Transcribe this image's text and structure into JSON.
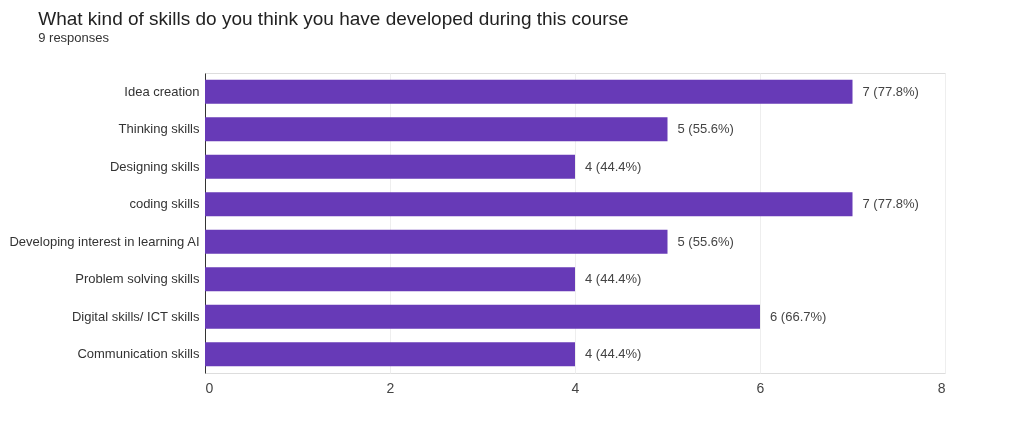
{
  "chart_data": {
    "type": "bar",
    "orientation": "horizontal",
    "title": "What kind of skills do you think you have developed during this course",
    "subtitle": "9 responses",
    "categories": [
      "Idea creation",
      "Thinking skills",
      "Designing skills",
      "coding skills",
      "Developing interest in learning AI",
      "Problem solving skills",
      "Digital skills/ ICT skills",
      "Communication skills"
    ],
    "values": [
      7,
      5,
      4,
      7,
      5,
      4,
      6,
      4
    ],
    "value_labels": [
      "7 (77.8%)",
      "5 (55.6%)",
      "4 (44.4%)",
      "7 (77.8%)",
      "5 (55.6%)",
      "4 (44.4%)",
      "6 (66.7%)",
      "4 (44.4%)"
    ],
    "color": "#673ab7",
    "xlim": [
      0,
      8
    ],
    "xticks": [
      0,
      2,
      4,
      6,
      8
    ],
    "grid": "x"
  }
}
